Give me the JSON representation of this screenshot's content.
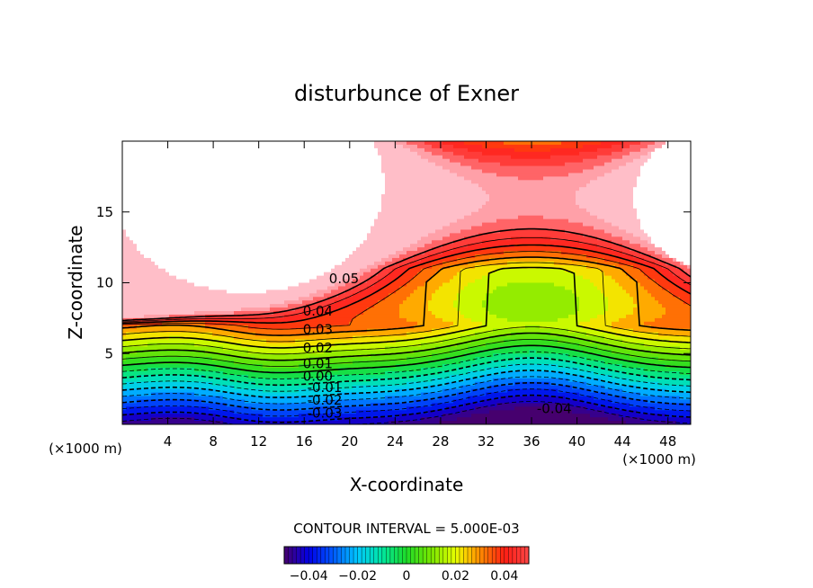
{
  "chart_data": {
    "type": "contour",
    "title": "disturbunce of Exner",
    "xlabel": "X-coordinate",
    "ylabel": "Z-coordinate",
    "x_unit": "(×1000 m)",
    "xlim": [
      0,
      50
    ],
    "ylim": [
      0,
      20
    ],
    "x_ticks": [
      4,
      8,
      12,
      16,
      20,
      24,
      28,
      32,
      36,
      40,
      44,
      48
    ],
    "y_ticks": [
      5,
      10,
      15
    ],
    "contour_interval_text": "CONTOUR INTERVAL = 5.000E-03",
    "contour_interval": 0.005,
    "contour_labels": [
      {
        "text": "0.05",
        "x": 19.5,
        "z": 10.3
      },
      {
        "text": "0.04",
        "x": 17.2,
        "z": 8.0
      },
      {
        "text": "0.03",
        "x": 17.2,
        "z": 6.7
      },
      {
        "text": "0.02",
        "x": 17.2,
        "z": 5.4
      },
      {
        "text": "0.01",
        "x": 17.2,
        "z": 4.3
      },
      {
        "text": "0.00",
        "x": 17.2,
        "z": 3.4
      },
      {
        "text": "-0.01",
        "x": 17.8,
        "z": 2.6
      },
      {
        "text": "-0.02",
        "x": 17.8,
        "z": 1.7
      },
      {
        "text": "-0.03",
        "x": 17.8,
        "z": 0.8
      },
      {
        "text": "-0.04",
        "x": 38.0,
        "z": 1.1
      }
    ],
    "colorbar": {
      "min": -0.05,
      "max": 0.05,
      "tick_values": [
        -0.04,
        -0.02,
        0,
        0.02,
        0.04
      ],
      "tick_labels": [
        "−0.04",
        "−0.02",
        "0",
        "0.02",
        "0.04"
      ]
    },
    "undefined_region_color": "#ffffff",
    "colormap": "rainbow"
  }
}
